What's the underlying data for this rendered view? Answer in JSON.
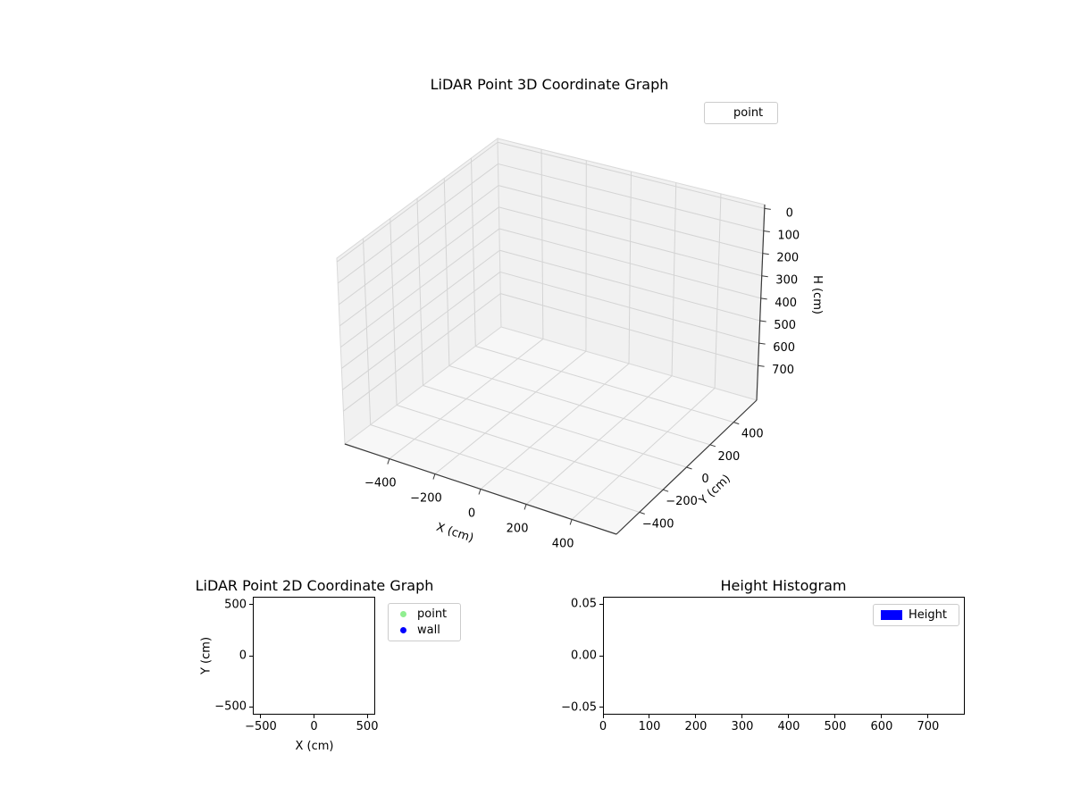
{
  "figure": {
    "background": "#ffffff"
  },
  "chart_data": [
    {
      "type": "scatter3d",
      "title": "LiDAR Point 3D Coordinate Graph",
      "xlabel": "X (cm)",
      "ylabel": "Y (cm)",
      "zlabel": "H (cm)",
      "xlim": [
        -500,
        500
      ],
      "ylim": [
        -500,
        500
      ],
      "zlim": [
        0,
        700
      ],
      "zaxis_inverted": true,
      "grid": true,
      "xticks": {
        "values": [
          -400,
          -200,
          0,
          200,
          400
        ],
        "labels": [
          "−400",
          "−200",
          "0",
          "200",
          "400"
        ]
      },
      "yticks": {
        "values": [
          -400,
          -200,
          0,
          200,
          400
        ],
        "labels": [
          "−400",
          "−200",
          "0",
          "200",
          "400"
        ]
      },
      "zticks": {
        "values": [
          0,
          100,
          200,
          300,
          400,
          500,
          600,
          700
        ],
        "labels": [
          "0",
          "100",
          "200",
          "300",
          "400",
          "500",
          "600",
          "700"
        ]
      },
      "pane_color": "#f1f1f1",
      "floor_color": "#f7f7f7",
      "grid_color": "#d4d4d4",
      "legend": {
        "position": "upper right",
        "entries": [
          {
            "label": "point",
            "marker": "none"
          }
        ]
      },
      "series": [
        {
          "name": "point",
          "points": []
        }
      ]
    },
    {
      "type": "scatter",
      "title": "LiDAR Point 2D Coordinate Graph",
      "xlabel": "X (cm)",
      "ylabel": "Y (cm)",
      "xlim": [
        -575,
        575
      ],
      "ylim": [
        -575,
        575
      ],
      "grid": false,
      "xticks": {
        "values": [
          -500,
          0,
          500
        ],
        "labels": [
          "−500",
          "0",
          "500"
        ]
      },
      "yticks": {
        "values": [
          500,
          0,
          -500
        ],
        "labels": [
          "500",
          "0",
          "−500"
        ]
      },
      "legend": {
        "position": "upper right outside",
        "entries": [
          {
            "label": "point",
            "marker": "dot",
            "marker_color": "#90ee90"
          },
          {
            "label": "wall",
            "marker": "dot",
            "marker_color": "#0000ff"
          }
        ]
      },
      "series": [
        {
          "name": "point",
          "points": []
        },
        {
          "name": "wall",
          "points": []
        }
      ]
    },
    {
      "type": "bar",
      "title": "Height Histogram",
      "xlabel": "",
      "ylabel": "",
      "xlim": [
        0,
        779
      ],
      "ylim": [
        -0.057,
        0.057
      ],
      "grid": false,
      "xticks": {
        "values": [
          0,
          100,
          200,
          300,
          400,
          500,
          600,
          700
        ],
        "labels": [
          "0",
          "100",
          "200",
          "300",
          "400",
          "500",
          "600",
          "700"
        ]
      },
      "yticks": {
        "values": [
          0.05,
          0.0,
          -0.05
        ],
        "labels": [
          "0.05",
          "0.00",
          "−0.05"
        ]
      },
      "legend": {
        "position": "upper right",
        "entries": [
          {
            "label": "Height",
            "marker": "rect",
            "swatch_color": "#0000ff"
          }
        ]
      },
      "values": []
    }
  ]
}
